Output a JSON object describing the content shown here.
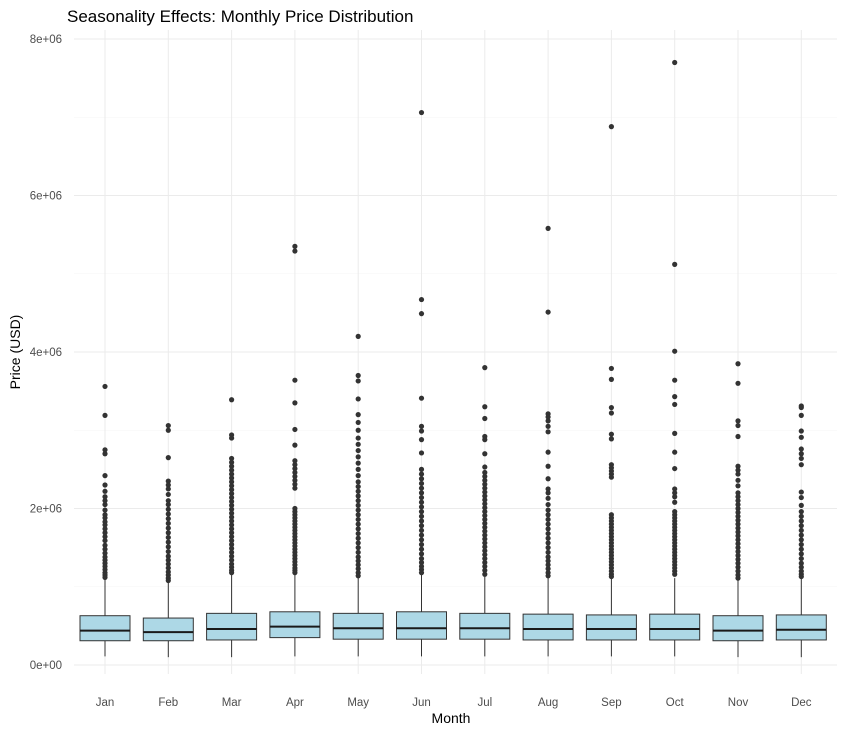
{
  "chart_data": {
    "type": "box",
    "title": "Seasonality Effects: Monthly Price Distribution",
    "xlabel": "Month",
    "ylabel": "Price (USD)",
    "ylim": [
      0,
      8000000
    ],
    "y_ticks": [
      0,
      2000000,
      4000000,
      6000000,
      8000000
    ],
    "y_tick_labels": [
      "0e+00",
      "2e+06",
      "4e+06",
      "6e+06",
      "8e+06"
    ],
    "grid": true,
    "legend": "none",
    "box_fill": "#add8e6",
    "categories": [
      "Jan",
      "Feb",
      "Mar",
      "Apr",
      "May",
      "Jun",
      "Jul",
      "Aug",
      "Sep",
      "Oct",
      "Nov",
      "Dec"
    ],
    "boxes": [
      {
        "whisker_low": 110000,
        "q1": 310000,
        "median": 440000,
        "q3": 630000,
        "whisker_high": 1100000,
        "outliers": [
          3560000,
          3190000,
          2750000,
          2700000,
          2420000,
          2300000,
          2220000,
          2150000,
          2100000,
          2050000,
          1980000,
          1920000,
          1880000,
          1830000,
          1790000,
          1740000,
          1690000,
          1640000,
          1590000,
          1530000,
          1480000,
          1430000,
          1380000,
          1340000,
          1300000,
          1260000,
          1220000,
          1180000,
          1150000,
          1120000
        ]
      },
      {
        "whisker_low": 100000,
        "q1": 310000,
        "median": 420000,
        "q3": 600000,
        "whisker_high": 1050000,
        "outliers": [
          3060000,
          3000000,
          2650000,
          2350000,
          2300000,
          2250000,
          2180000,
          2100000,
          2050000,
          1990000,
          1930000,
          1870000,
          1810000,
          1750000,
          1690000,
          1630000,
          1570000,
          1510000,
          1450000,
          1390000,
          1340000,
          1290000,
          1240000,
          1190000,
          1150000,
          1110000,
          1080000
        ]
      },
      {
        "whisker_low": 100000,
        "q1": 320000,
        "median": 460000,
        "q3": 660000,
        "whisker_high": 1150000,
        "outliers": [
          3390000,
          2940000,
          2900000,
          2640000,
          2590000,
          2540000,
          2490000,
          2440000,
          2390000,
          2340000,
          2290000,
          2240000,
          2190000,
          2140000,
          2090000,
          2040000,
          1990000,
          1940000,
          1890000,
          1840000,
          1790000,
          1740000,
          1690000,
          1640000,
          1590000,
          1540000,
          1490000,
          1440000,
          1390000,
          1340000,
          1290000,
          1250000,
          1210000,
          1180000
        ]
      },
      {
        "whisker_low": 110000,
        "q1": 350000,
        "median": 490000,
        "q3": 680000,
        "whisker_high": 1160000,
        "outliers": [
          5350000,
          5290000,
          3640000,
          3350000,
          3010000,
          2810000,
          2610000,
          2560000,
          2510000,
          2460000,
          2410000,
          2360000,
          2310000,
          2260000,
          2000000,
          1960000,
          1920000,
          1880000,
          1840000,
          1800000,
          1760000,
          1720000,
          1680000,
          1640000,
          1600000,
          1560000,
          1520000,
          1480000,
          1440000,
          1400000,
          1360000,
          1320000,
          1280000,
          1240000,
          1210000,
          1180000
        ]
      },
      {
        "whisker_low": 110000,
        "q1": 330000,
        "median": 470000,
        "q3": 660000,
        "whisker_high": 1130000,
        "outliers": [
          4200000,
          3700000,
          3630000,
          3400000,
          3200000,
          3100000,
          3000000,
          2900000,
          2820000,
          2740000,
          2660000,
          2580000,
          2500000,
          2420000,
          2340000,
          2280000,
          2220000,
          2160000,
          2100000,
          2040000,
          1980000,
          1920000,
          1860000,
          1800000,
          1740000,
          1680000,
          1620000,
          1560000,
          1500000,
          1440000,
          1380000,
          1330000,
          1280000,
          1230000,
          1180000,
          1140000
        ]
      },
      {
        "whisker_low": 110000,
        "q1": 330000,
        "median": 470000,
        "q3": 680000,
        "whisker_high": 1150000,
        "outliers": [
          7060000,
          4670000,
          4490000,
          3410000,
          3050000,
          2990000,
          2880000,
          2710000,
          2500000,
          2440000,
          2380000,
          2320000,
          2260000,
          2200000,
          2140000,
          2080000,
          2020000,
          1960000,
          1900000,
          1840000,
          1780000,
          1720000,
          1660000,
          1600000,
          1540000,
          1480000,
          1420000,
          1360000,
          1310000,
          1260000,
          1220000,
          1180000
        ]
      },
      {
        "whisker_low": 110000,
        "q1": 330000,
        "median": 470000,
        "q3": 660000,
        "whisker_high": 1130000,
        "outliers": [
          3800000,
          3300000,
          3150000,
          2920000,
          2880000,
          2700000,
          2530000,
          2460000,
          2410000,
          2360000,
          2310000,
          2260000,
          2210000,
          2160000,
          2110000,
          2060000,
          2010000,
          1960000,
          1910000,
          1860000,
          1810000,
          1760000,
          1710000,
          1660000,
          1610000,
          1560000,
          1510000,
          1460000,
          1410000,
          1360000,
          1310000,
          1260000,
          1210000,
          1160000
        ]
      },
      {
        "whisker_low": 110000,
        "q1": 320000,
        "median": 460000,
        "q3": 650000,
        "whisker_high": 1120000,
        "outliers": [
          5580000,
          4510000,
          3210000,
          3170000,
          3120000,
          3050000,
          2980000,
          2720000,
          2540000,
          2380000,
          2250000,
          2200000,
          2130000,
          2050000,
          1980000,
          1920000,
          1860000,
          1800000,
          1740000,
          1680000,
          1620000,
          1560000,
          1500000,
          1440000,
          1380000,
          1330000,
          1280000,
          1230000,
          1180000,
          1140000
        ]
      },
      {
        "whisker_low": 110000,
        "q1": 320000,
        "median": 460000,
        "q3": 640000,
        "whisker_high": 1100000,
        "outliers": [
          6880000,
          3790000,
          3650000,
          3290000,
          3220000,
          2950000,
          2890000,
          2560000,
          2520000,
          2480000,
          2440000,
          2400000,
          1920000,
          1880000,
          1840000,
          1800000,
          1760000,
          1720000,
          1680000,
          1640000,
          1600000,
          1560000,
          1520000,
          1480000,
          1440000,
          1400000,
          1360000,
          1320000,
          1280000,
          1240000,
          1200000,
          1160000,
          1130000
        ]
      },
      {
        "whisker_low": 110000,
        "q1": 320000,
        "median": 460000,
        "q3": 650000,
        "whisker_high": 1110000,
        "outliers": [
          7700000,
          5120000,
          4010000,
          3640000,
          3430000,
          3330000,
          2960000,
          2720000,
          2510000,
          2250000,
          2200000,
          2150000,
          2080000,
          1960000,
          1920000,
          1880000,
          1840000,
          1800000,
          1760000,
          1720000,
          1680000,
          1640000,
          1600000,
          1560000,
          1520000,
          1480000,
          1440000,
          1400000,
          1360000,
          1320000,
          1280000,
          1240000,
          1200000,
          1160000
        ]
      },
      {
        "whisker_low": 100000,
        "q1": 310000,
        "median": 440000,
        "q3": 630000,
        "whisker_high": 1080000,
        "outliers": [
          3850000,
          3600000,
          3120000,
          3060000,
          2920000,
          2540000,
          2490000,
          2440000,
          2360000,
          2290000,
          2200000,
          2150000,
          2100000,
          2050000,
          2000000,
          1950000,
          1900000,
          1850000,
          1800000,
          1750000,
          1700000,
          1650000,
          1600000,
          1550000,
          1500000,
          1450000,
          1400000,
          1350000,
          1300000,
          1250000,
          1200000,
          1150000,
          1110000
        ]
      },
      {
        "whisker_low": 100000,
        "q1": 320000,
        "median": 450000,
        "q3": 640000,
        "whisker_high": 1100000,
        "outliers": [
          3310000,
          3290000,
          3190000,
          2990000,
          2910000,
          2760000,
          2700000,
          2640000,
          2560000,
          2210000,
          2140000,
          2040000,
          1960000,
          1900000,
          1840000,
          1780000,
          1720000,
          1660000,
          1600000,
          1540000,
          1480000,
          1420000,
          1360000,
          1300000,
          1250000,
          1200000,
          1160000,
          1130000
        ]
      }
    ]
  }
}
